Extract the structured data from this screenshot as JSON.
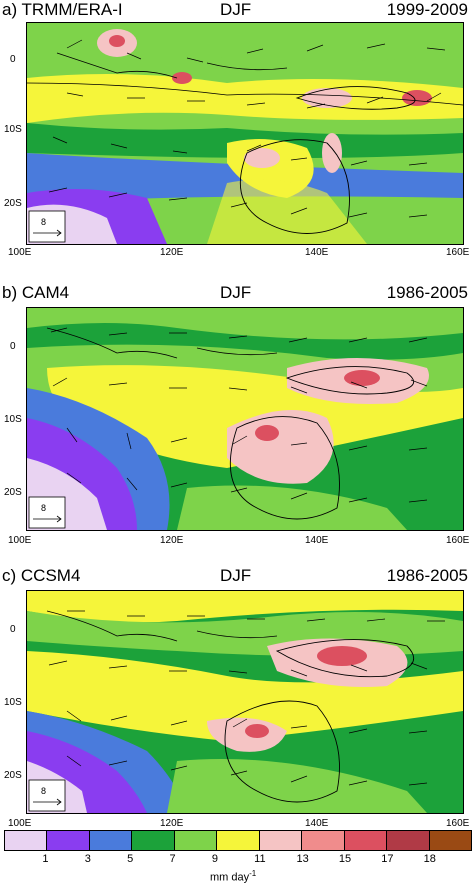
{
  "panels": [
    {
      "id": "a",
      "label": "a) TRMM/ERA-I",
      "season": "DJF",
      "period": "1999-2009"
    },
    {
      "id": "b",
      "label": "b) CAM4",
      "season": "DJF",
      "period": "1986-2005"
    },
    {
      "id": "c",
      "label": "c) CCSM4",
      "season": "DJF",
      "period": "1986-2005"
    }
  ],
  "y_ticks": [
    "0",
    "10S",
    "20S"
  ],
  "x_ticks": [
    "100E",
    "120E",
    "140E",
    "160E"
  ],
  "vector_reference": "8",
  "colorbar": {
    "colors": [
      "#e9d3f2",
      "#8a3df0",
      "#4a7bdc",
      "#1ca23a",
      "#7ed34a",
      "#f5f53a",
      "#f5c4c4",
      "#f08c8c",
      "#dc5060",
      "#b03a46",
      "#9a4a14"
    ],
    "labels": [
      "1",
      "3",
      "5",
      "7",
      "9",
      "11",
      "13",
      "15",
      "17",
      "18"
    ],
    "units": "mm day",
    "units_exp": "-1"
  }
}
